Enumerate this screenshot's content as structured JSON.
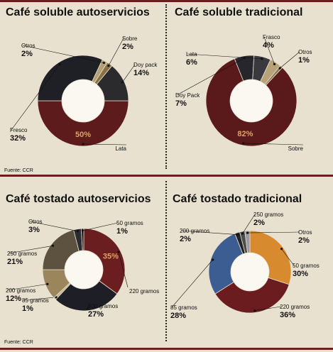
{
  "source": "Fuente: CCR",
  "chart_data": [
    {
      "type": "pie",
      "title": "Café soluble autoservicios",
      "slices": [
        {
          "name": "Lata",
          "value": 50,
          "label": "50%",
          "color": "#5e1b1c"
        },
        {
          "name": "Fresco",
          "value": 32,
          "label": "32%",
          "color": "#1f1f26"
        },
        {
          "name": "Otros",
          "value": 2,
          "label": "2%",
          "color": "#b59e74"
        },
        {
          "name": "Sobre",
          "value": 2,
          "label": "2%",
          "color": "#8a7048"
        },
        {
          "name": "Doy pack",
          "value": 14,
          "label": "14%",
          "color": "#2b2a2c"
        }
      ]
    },
    {
      "type": "pie",
      "title": "Café soluble tradicional",
      "slices": [
        {
          "name": "Sobre",
          "value": 82,
          "label": "82%",
          "color": "#5a1a1b"
        },
        {
          "name": "Doy Pack",
          "value": 7,
          "label": "7%",
          "color": "#26262c"
        },
        {
          "name": "Lata",
          "value": 6,
          "label": "6%",
          "color": "#3a3a3e"
        },
        {
          "name": "Frasco",
          "value": 4,
          "label": "4%",
          "color": "#b8a27a"
        },
        {
          "name": "Otros",
          "value": 1,
          "label": "1%",
          "color": "#8c7550"
        }
      ]
    },
    {
      "type": "pie",
      "title": "Café tostado autoservicios",
      "slices": [
        {
          "name": "220 gramos",
          "value": 35,
          "label": "35%",
          "color": "#6a1e20"
        },
        {
          "name": "500 gramos",
          "value": 27,
          "label": "27%",
          "color": "#1e1f26"
        },
        {
          "name": "85 gramos",
          "value": 1,
          "label": "1%",
          "color": "#c7b28a"
        },
        {
          "name": "200 gramos",
          "value": 12,
          "label": "12%",
          "color": "#9a855c"
        },
        {
          "name": "250 gramos",
          "value": 21,
          "label": "21%",
          "color": "#5d5140"
        },
        {
          "name": "Otros",
          "value": 3,
          "label": "3%",
          "color": "#2c2c30"
        },
        {
          "name": "50 gramos",
          "value": 1,
          "label": "1%",
          "color": "#1a1a1e"
        }
      ]
    },
    {
      "type": "pie",
      "title": "Café tostado tradicional",
      "slices": [
        {
          "name": "50 gramos",
          "value": 30,
          "label": "30%",
          "color": "#d88a2e"
        },
        {
          "name": "220 gramos",
          "value": 36,
          "label": "36%",
          "color": "#6a1c1e"
        },
        {
          "name": "85 gramos",
          "value": 28,
          "label": "28%",
          "color": "#3c5d92"
        },
        {
          "name": "200 gramos",
          "value": 2,
          "label": "2%",
          "color": "#232326"
        },
        {
          "name": "250 gramos",
          "value": 2,
          "label": "2%",
          "color": "#4b4b50"
        },
        {
          "name": "Otros",
          "value": 2,
          "label": "2%",
          "color": "#9a9aa0"
        }
      ]
    }
  ]
}
